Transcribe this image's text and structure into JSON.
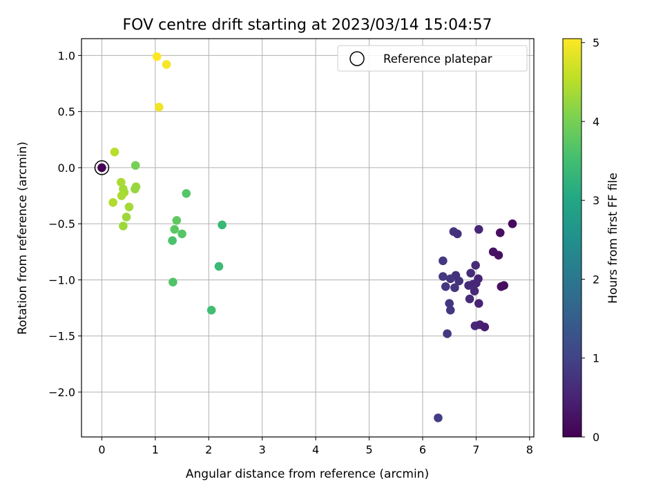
{
  "chart_data": {
    "type": "scatter",
    "title": "FOV centre drift starting at 2023/03/14 15:04:57",
    "xlabel": "Angular distance from reference (arcmin)",
    "ylabel": "Rotation from reference (arcmin)",
    "xlim": [
      -0.38,
      8.08
    ],
    "ylim": [
      -2.4,
      1.15
    ],
    "xticks": [
      0,
      1,
      2,
      3,
      4,
      5,
      6,
      7,
      8
    ],
    "yticks": [
      1.0,
      0.5,
      0.0,
      -0.5,
      -1.0,
      -1.5,
      -2.0
    ],
    "xtick_labels": [
      "0",
      "1",
      "2",
      "3",
      "4",
      "5",
      "6",
      "7",
      "8"
    ],
    "ytick_labels": [
      "1.0",
      "0.5",
      "0.0",
      "−0.5",
      "−1.0",
      "−1.5",
      "−2.0"
    ],
    "grid": true,
    "legend": {
      "placement": "top-right",
      "entries": [
        "Reference platepar"
      ]
    },
    "reference_point": {
      "x": 0.0,
      "y": 0.0
    },
    "colorbar": {
      "label": "Hours from first FF file",
      "range": [
        0,
        5.05
      ],
      "ticks": [
        0,
        1,
        2,
        3,
        4,
        5
      ],
      "tick_labels": [
        "0",
        "1",
        "2",
        "3",
        "4",
        "5"
      ],
      "colormap": "viridis"
    },
    "series": [
      {
        "marker": "filled-circle",
        "points": [
          {
            "x": 7.68,
            "y": -0.5,
            "c": 0.15
          },
          {
            "x": 7.45,
            "y": -0.58,
            "c": 0.2
          },
          {
            "x": 7.05,
            "y": -0.55,
            "c": 0.55
          },
          {
            "x": 6.58,
            "y": -0.57,
            "c": 0.75
          },
          {
            "x": 6.65,
            "y": -0.59,
            "c": 0.7
          },
          {
            "x": 7.32,
            "y": -0.75,
            "c": 0.25
          },
          {
            "x": 7.42,
            "y": -0.78,
            "c": 0.2
          },
          {
            "x": 6.38,
            "y": -0.83,
            "c": 0.85
          },
          {
            "x": 6.99,
            "y": -0.87,
            "c": 0.6
          },
          {
            "x": 6.9,
            "y": -0.94,
            "c": 0.65
          },
          {
            "x": 6.38,
            "y": -0.97,
            "c": 0.85
          },
          {
            "x": 6.62,
            "y": -0.96,
            "c": 0.7
          },
          {
            "x": 6.52,
            "y": -0.99,
            "c": 0.8
          },
          {
            "x": 6.68,
            "y": -1.01,
            "c": 0.72
          },
          {
            "x": 7.04,
            "y": -0.99,
            "c": 0.5
          },
          {
            "x": 6.86,
            "y": -1.05,
            "c": 0.62
          },
          {
            "x": 6.94,
            "y": -1.04,
            "c": 0.58
          },
          {
            "x": 7.0,
            "y": -1.03,
            "c": 0.55
          },
          {
            "x": 6.43,
            "y": -1.06,
            "c": 0.82
          },
          {
            "x": 6.6,
            "y": -1.07,
            "c": 0.75
          },
          {
            "x": 7.47,
            "y": -1.06,
            "c": 0.2
          },
          {
            "x": 7.52,
            "y": -1.05,
            "c": 0.18
          },
          {
            "x": 6.97,
            "y": -1.1,
            "c": 0.58
          },
          {
            "x": 6.88,
            "y": -1.17,
            "c": 0.62
          },
          {
            "x": 6.5,
            "y": -1.21,
            "c": 0.8
          },
          {
            "x": 7.05,
            "y": -1.21,
            "c": 0.5
          },
          {
            "x": 6.52,
            "y": -1.27,
            "c": 0.8
          },
          {
            "x": 6.98,
            "y": -1.41,
            "c": 0.55
          },
          {
            "x": 7.07,
            "y": -1.4,
            "c": 0.48
          },
          {
            "x": 7.16,
            "y": -1.42,
            "c": 0.4
          },
          {
            "x": 6.46,
            "y": -1.48,
            "c": 0.82
          },
          {
            "x": 6.29,
            "y": -2.23,
            "c": 0.9
          },
          {
            "x": 0.0,
            "y": 0.0,
            "c": 0.0
          },
          {
            "x": 1.03,
            "y": 0.99,
            "c": 5.05
          },
          {
            "x": 1.21,
            "y": 0.92,
            "c": 5.0
          },
          {
            "x": 1.07,
            "y": 0.54,
            "c": 4.95
          },
          {
            "x": 0.24,
            "y": 0.14,
            "c": 4.5
          },
          {
            "x": 0.63,
            "y": 0.02,
            "c": 4.0
          },
          {
            "x": 0.36,
            "y": -0.13,
            "c": 4.4
          },
          {
            "x": 0.64,
            "y": -0.17,
            "c": 4.3
          },
          {
            "x": 0.62,
            "y": -0.19,
            "c": 4.25
          },
          {
            "x": 0.4,
            "y": -0.19,
            "c": 4.35
          },
          {
            "x": 0.42,
            "y": -0.22,
            "c": 4.35
          },
          {
            "x": 0.37,
            "y": -0.25,
            "c": 4.4
          },
          {
            "x": 0.21,
            "y": -0.31,
            "c": 4.45
          },
          {
            "x": 0.51,
            "y": -0.35,
            "c": 4.35
          },
          {
            "x": 0.46,
            "y": -0.44,
            "c": 4.3
          },
          {
            "x": 0.4,
            "y": -0.52,
            "c": 4.3
          },
          {
            "x": 1.58,
            "y": -0.23,
            "c": 3.7
          },
          {
            "x": 1.4,
            "y": -0.47,
            "c": 3.8
          },
          {
            "x": 1.36,
            "y": -0.55,
            "c": 3.75
          },
          {
            "x": 1.5,
            "y": -0.59,
            "c": 3.7
          },
          {
            "x": 2.25,
            "y": -0.51,
            "c": 3.35
          },
          {
            "x": 1.32,
            "y": -0.65,
            "c": 3.6
          },
          {
            "x": 2.19,
            "y": -0.88,
            "c": 3.4
          },
          {
            "x": 1.33,
            "y": -1.02,
            "c": 3.65
          },
          {
            "x": 2.05,
            "y": -1.27,
            "c": 3.5
          }
        ]
      }
    ]
  }
}
